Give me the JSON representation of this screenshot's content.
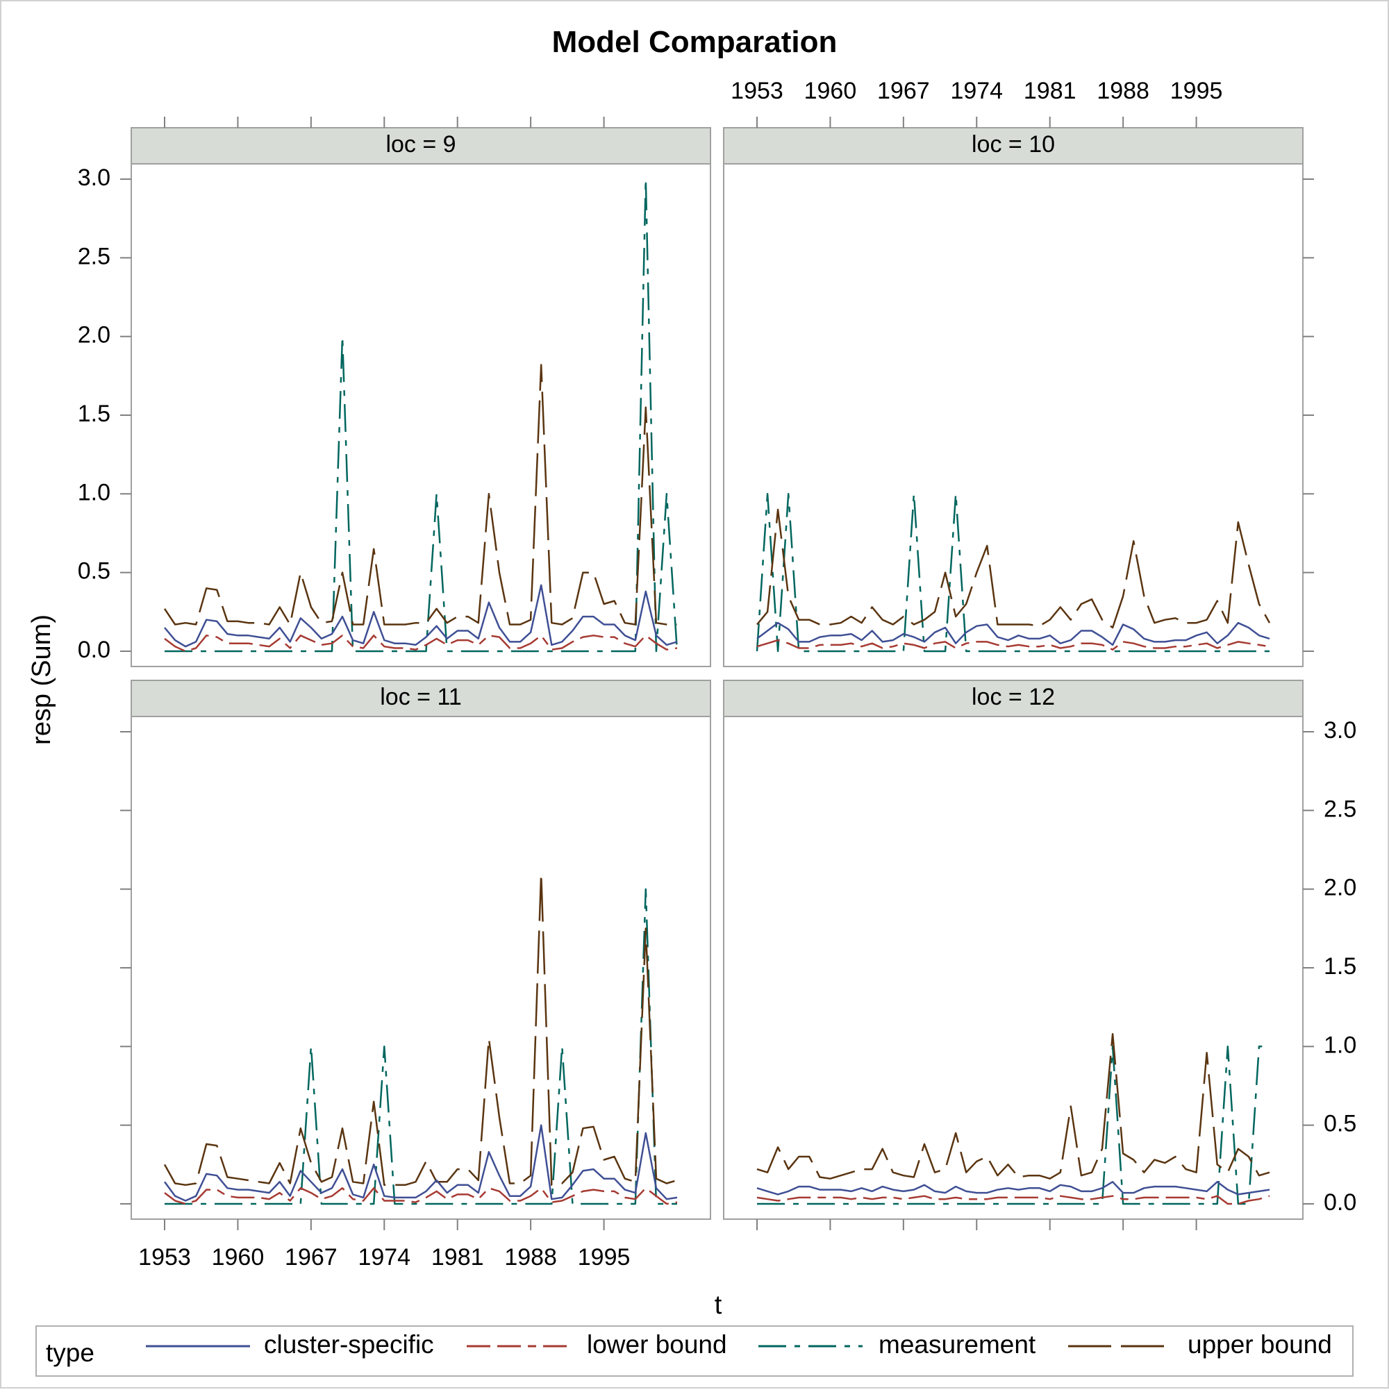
{
  "chart_data": {
    "type": "line",
    "title": "Model Comparation",
    "xlabel": "t",
    "ylabel": "resp (Sum)",
    "x_ticks": [
      1953,
      1960,
      1967,
      1974,
      1981,
      1988,
      1995
    ],
    "y_ticks": [
      "0.0",
      "0.5",
      "1.0",
      "1.5",
      "2.0",
      "2.5",
      "3.0"
    ],
    "xlim": [
      1953,
      2002
    ],
    "ylim": [
      0,
      3
    ],
    "grid": false,
    "legend": {
      "title": "type",
      "placement": "bottom",
      "entries": [
        "cluster-specific",
        "lower bound",
        "measurement",
        "upper bound"
      ]
    },
    "colors": {
      "cluster-specific": "#3f4f94",
      "lower bound": "#a63a32",
      "measurement": "#00665e",
      "upper bound": "#5a3410",
      "strip": "#d8dcd6",
      "frame": "#a0a0a0"
    },
    "x": [
      1953,
      1954,
      1955,
      1956,
      1957,
      1958,
      1959,
      1960,
      1961,
      1962,
      1963,
      1964,
      1965,
      1966,
      1967,
      1968,
      1969,
      1970,
      1971,
      1972,
      1973,
      1974,
      1975,
      1976,
      1977,
      1978,
      1979,
      1980,
      1981,
      1982,
      1983,
      1984,
      1985,
      1986,
      1987,
      1988,
      1989,
      1990,
      1991,
      1992,
      1993,
      1994,
      1995,
      1996,
      1997,
      1998,
      1999,
      2000,
      2001,
      2002
    ],
    "panels": [
      {
        "label": "loc = 9",
        "series": [
          {
            "name": "cluster-specific",
            "values": [
              0.15,
              0.07,
              0.03,
              0.06,
              0.2,
              0.19,
              0.11,
              0.1,
              0.1,
              0.09,
              0.08,
              0.15,
              0.06,
              0.21,
              0.15,
              0.08,
              0.11,
              0.22,
              0.07,
              0.05,
              0.25,
              0.07,
              0.05,
              0.05,
              0.04,
              0.09,
              0.16,
              0.08,
              0.13,
              0.13,
              0.08,
              0.31,
              0.15,
              0.06,
              0.06,
              0.12,
              0.42,
              0.04,
              0.06,
              0.13,
              0.22,
              0.22,
              0.17,
              0.17,
              0.1,
              0.07,
              0.38,
              0.1,
              0.04,
              0.06
            ]
          },
          {
            "name": "lower bound",
            "values": [
              0.08,
              0.03,
              0.0,
              0.02,
              0.1,
              0.09,
              0.05,
              0.05,
              0.05,
              0.04,
              0.03,
              0.08,
              0.02,
              0.1,
              0.07,
              0.04,
              0.05,
              0.1,
              0.03,
              0.02,
              0.1,
              0.03,
              0.02,
              0.02,
              0.01,
              0.04,
              0.08,
              0.04,
              0.07,
              0.07,
              0.04,
              0.1,
              0.09,
              0.02,
              0.02,
              0.05,
              0.1,
              0.01,
              0.02,
              0.06,
              0.09,
              0.1,
              0.09,
              0.09,
              0.05,
              0.03,
              0.1,
              0.05,
              0.01,
              0.02
            ]
          },
          {
            "name": "measurement",
            "values": [
              0,
              0,
              0,
              0,
              0,
              0,
              0,
              0,
              0,
              0,
              0,
              0,
              0,
              0,
              0,
              0,
              0,
              2,
              0,
              0,
              0,
              0,
              0,
              0,
              0,
              0,
              1,
              0,
              0,
              0,
              0,
              0,
              0,
              0,
              0,
              0,
              0,
              0,
              0,
              0,
              0,
              0,
              0,
              0,
              0,
              0,
              3,
              0,
              1,
              0
            ]
          },
          {
            "name": "upper bound",
            "values": [
              0.27,
              0.17,
              0.18,
              0.17,
              0.4,
              0.39,
              0.19,
              0.19,
              0.18,
              0.18,
              0.17,
              0.28,
              0.17,
              0.5,
              0.28,
              0.18,
              0.19,
              0.5,
              0.17,
              0.17,
              0.65,
              0.17,
              0.17,
              0.17,
              0.18,
              0.18,
              0.27,
              0.18,
              0.22,
              0.22,
              0.18,
              1.0,
              0.5,
              0.17,
              0.17,
              0.2,
              1.82,
              0.18,
              0.17,
              0.21,
              0.5,
              0.5,
              0.3,
              0.32,
              0.18,
              0.17,
              1.55,
              0.18,
              0.17,
              0.17
            ]
          }
        ]
      },
      {
        "label": "loc = 10",
        "series": [
          {
            "name": "cluster-specific",
            "values": [
              0.08,
              0.13,
              0.18,
              0.14,
              0.06,
              0.06,
              0.09,
              0.1,
              0.1,
              0.11,
              0.07,
              0.13,
              0.06,
              0.07,
              0.11,
              0.09,
              0.06,
              0.12,
              0.15,
              0.05,
              0.12,
              0.16,
              0.17,
              0.09,
              0.07,
              0.1,
              0.08,
              0.08,
              0.1,
              0.05,
              0.07,
              0.13,
              0.13,
              0.09,
              0.04,
              0.17,
              0.14,
              0.08,
              0.06,
              0.06,
              0.07,
              0.07,
              0.1,
              0.12,
              0.05,
              0.1,
              0.18,
              0.15,
              0.1,
              0.08
            ]
          },
          {
            "name": "lower bound",
            "values": [
              0.03,
              0.05,
              0.07,
              0.05,
              0.02,
              0.02,
              0.04,
              0.04,
              0.04,
              0.05,
              0.03,
              0.05,
              0.02,
              0.03,
              0.05,
              0.04,
              0.02,
              0.05,
              0.06,
              0.02,
              0.05,
              0.06,
              0.06,
              0.04,
              0.03,
              0.04,
              0.03,
              0.03,
              0.04,
              0.02,
              0.03,
              0.05,
              0.05,
              0.04,
              0.01,
              0.06,
              0.05,
              0.03,
              0.02,
              0.02,
              0.03,
              0.03,
              0.04,
              0.05,
              0.02,
              0.04,
              0.06,
              0.05,
              0.04,
              0.03
            ]
          },
          {
            "name": "measurement",
            "values": [
              0,
              1,
              0,
              1,
              0,
              0,
              0,
              0,
              0,
              0,
              0,
              0,
              0,
              0,
              0,
              1,
              0,
              0,
              0,
              1,
              0,
              0,
              0,
              0,
              0,
              0,
              0,
              0,
              0,
              0,
              0,
              0,
              0,
              0,
              0,
              0,
              0,
              0,
              0,
              0,
              0,
              0,
              0,
              0,
              0,
              0,
              0,
              0,
              0,
              0
            ]
          },
          {
            "name": "upper bound",
            "values": [
              0.17,
              0.25,
              0.9,
              0.35,
              0.2,
              0.2,
              0.17,
              0.17,
              0.18,
              0.22,
              0.18,
              0.28,
              0.2,
              0.17,
              0.22,
              0.17,
              0.2,
              0.25,
              0.5,
              0.22,
              0.3,
              0.5,
              0.67,
              0.17,
              0.17,
              0.17,
              0.17,
              0.16,
              0.2,
              0.28,
              0.2,
              0.3,
              0.33,
              0.2,
              0.15,
              0.35,
              0.7,
              0.35,
              0.18,
              0.2,
              0.21,
              0.18,
              0.18,
              0.2,
              0.32,
              0.18,
              0.82,
              0.55,
              0.3,
              0.18
            ]
          }
        ]
      },
      {
        "label": "loc = 11",
        "series": [
          {
            "name": "cluster-specific",
            "values": [
              0.14,
              0.05,
              0.02,
              0.05,
              0.19,
              0.18,
              0.1,
              0.09,
              0.09,
              0.08,
              0.07,
              0.14,
              0.05,
              0.21,
              0.14,
              0.07,
              0.1,
              0.22,
              0.06,
              0.04,
              0.25,
              0.05,
              0.04,
              0.04,
              0.04,
              0.08,
              0.15,
              0.07,
              0.12,
              0.12,
              0.07,
              0.33,
              0.18,
              0.05,
              0.05,
              0.11,
              0.5,
              0.03,
              0.04,
              0.12,
              0.21,
              0.22,
              0.16,
              0.16,
              0.09,
              0.07,
              0.45,
              0.1,
              0.03,
              0.04
            ]
          },
          {
            "name": "lower bound",
            "values": [
              0.07,
              0.02,
              0.0,
              0.02,
              0.09,
              0.09,
              0.05,
              0.04,
              0.04,
              0.04,
              0.03,
              0.07,
              0.02,
              0.1,
              0.07,
              0.03,
              0.05,
              0.1,
              0.03,
              0.02,
              0.1,
              0.02,
              0.02,
              0.02,
              0.01,
              0.04,
              0.08,
              0.03,
              0.06,
              0.06,
              0.03,
              0.1,
              0.08,
              0.02,
              0.02,
              0.05,
              0.1,
              0.01,
              0.02,
              0.05,
              0.08,
              0.09,
              0.08,
              0.08,
              0.04,
              0.03,
              0.1,
              0.05,
              0.0,
              0.01
            ]
          },
          {
            "name": "measurement",
            "values": [
              0,
              0,
              0,
              0,
              0,
              0,
              0,
              0,
              0,
              0,
              0,
              0,
              0,
              0,
              1,
              0,
              0,
              0,
              0,
              0,
              0,
              1,
              0,
              0,
              0,
              0,
              0,
              0,
              0,
              0,
              0,
              0,
              0,
              0,
              0,
              0,
              0,
              0,
              1,
              0,
              0,
              0,
              0,
              0,
              0,
              0,
              2,
              0,
              0,
              0
            ]
          },
          {
            "name": "upper bound",
            "values": [
              0.25,
              0.13,
              0.12,
              0.13,
              0.38,
              0.37,
              0.17,
              0.16,
              0.15,
              0.14,
              0.13,
              0.26,
              0.13,
              0.48,
              0.26,
              0.14,
              0.17,
              0.48,
              0.14,
              0.13,
              0.65,
              0.12,
              0.12,
              0.12,
              0.14,
              0.27,
              0.14,
              0.14,
              0.22,
              0.22,
              0.15,
              1.05,
              0.55,
              0.13,
              0.13,
              0.18,
              2.1,
              0.12,
              0.13,
              0.2,
              0.48,
              0.49,
              0.28,
              0.3,
              0.16,
              0.14,
              1.75,
              0.16,
              0.13,
              0.15
            ]
          }
        ]
      },
      {
        "label": "loc = 12",
        "series": [
          {
            "name": "cluster-specific",
            "values": [
              0.1,
              0.08,
              0.06,
              0.08,
              0.11,
              0.11,
              0.09,
              0.09,
              0.09,
              0.08,
              0.1,
              0.08,
              0.11,
              0.09,
              0.08,
              0.09,
              0.12,
              0.08,
              0.07,
              0.11,
              0.08,
              0.07,
              0.07,
              0.09,
              0.1,
              0.09,
              0.1,
              0.1,
              0.08,
              0.12,
              0.11,
              0.08,
              0.08,
              0.1,
              0.14,
              0.07,
              0.07,
              0.1,
              0.11,
              0.11,
              0.11,
              0.1,
              0.09,
              0.08,
              0.14,
              0.09,
              0.06,
              0.07,
              0.08,
              0.09
            ]
          },
          {
            "name": "lower bound",
            "values": [
              0.04,
              0.03,
              0.02,
              0.03,
              0.04,
              0.04,
              0.04,
              0.04,
              0.04,
              0.03,
              0.04,
              0.03,
              0.04,
              0.04,
              0.03,
              0.04,
              0.05,
              0.03,
              0.03,
              0.04,
              0.03,
              0.03,
              0.03,
              0.04,
              0.04,
              0.04,
              0.04,
              0.04,
              0.03,
              0.05,
              0.04,
              0.03,
              0.03,
              0.04,
              0.05,
              0.03,
              0.03,
              0.04,
              0.04,
              0.04,
              0.04,
              0.04,
              0.04,
              0.03,
              0.05,
              0.0,
              0.0,
              0.02,
              0.03,
              0.05
            ]
          },
          {
            "name": "measurement",
            "values": [
              0,
              0,
              0,
              0,
              0,
              0,
              0,
              0,
              0,
              0,
              0,
              0,
              0,
              0,
              0,
              0,
              0,
              0,
              0,
              0,
              0,
              0,
              0,
              0,
              0,
              0,
              0,
              0,
              0,
              0,
              0,
              0,
              0,
              0,
              1,
              0,
              0,
              0,
              0,
              0,
              0,
              0,
              0,
              0,
              0,
              1,
              0,
              0,
              1,
              1
            ]
          },
          {
            "name": "upper bound",
            "values": [
              0.22,
              0.2,
              0.36,
              0.22,
              0.3,
              0.3,
              0.17,
              0.16,
              0.18,
              0.2,
              0.22,
              0.22,
              0.35,
              0.2,
              0.18,
              0.17,
              0.38,
              0.2,
              0.22,
              0.45,
              0.2,
              0.27,
              0.3,
              0.18,
              0.25,
              0.17,
              0.18,
              0.18,
              0.16,
              0.2,
              0.62,
              0.18,
              0.2,
              0.35,
              1.08,
              0.32,
              0.28,
              0.2,
              0.28,
              0.26,
              0.3,
              0.22,
              0.2,
              0.96,
              0.25,
              0.2,
              0.35,
              0.3,
              0.18,
              0.2
            ]
          }
        ]
      }
    ]
  }
}
